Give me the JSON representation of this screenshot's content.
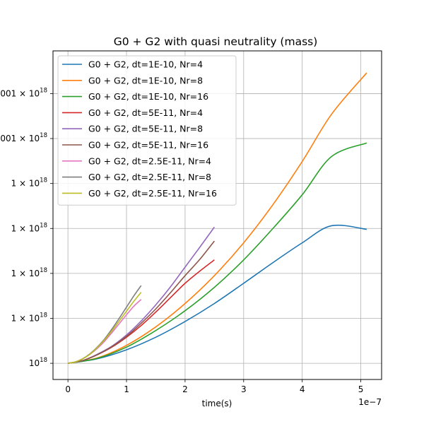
{
  "chart_data": {
    "type": "line",
    "title": "G0 + G2 with quasi neutrality (mass)",
    "xlabel": "time(s)",
    "ylabel": "",
    "x_offset_label": "1e−7",
    "xlim": [
      -0.255,
      5.355
    ],
    "ylim": [
      -0.36,
      6.95
    ],
    "x_ticks": [
      0,
      1,
      2,
      3,
      4,
      5
    ],
    "x_tick_labels": [
      "0",
      "1",
      "2",
      "3",
      "4",
      "5"
    ],
    "y_ticks": [
      0,
      1,
      2,
      3,
      4,
      5,
      6
    ],
    "y_tick_labels": [
      {
        "base": "10",
        "exp": "18"
      },
      {
        "base": "1 × 10",
        "exp": "18"
      },
      {
        "base": "1 × 10",
        "exp": "18"
      },
      {
        "base": "1 × 10",
        "exp": "18"
      },
      {
        "base": "1 × 10",
        "exp": "18"
      },
      {
        "base": "001 × 10",
        "exp": "18"
      },
      {
        "base": "001 × 10",
        "exp": "18"
      }
    ],
    "grid": true,
    "legend_position": "top-left",
    "series": [
      {
        "name": "G0 + G2, dt=1E-10, Nr=4",
        "color": "#1f77b4",
        "x": [
          0,
          0.5,
          1.0,
          1.5,
          2.0,
          2.5,
          3.0,
          3.5,
          4.0,
          4.5,
          5.1
        ],
        "y": [
          0,
          0.1,
          0.3,
          0.58,
          0.93,
          1.33,
          1.78,
          2.24,
          2.68,
          3.06,
          2.98
        ]
      },
      {
        "name": "G0 + G2, dt=1E-10, Nr=8",
        "color": "#ff7f0e",
        "x": [
          0,
          0.5,
          1.0,
          1.5,
          2.0,
          2.5,
          3.0,
          3.5,
          4.0,
          4.5,
          5.1
        ],
        "y": [
          0,
          0.12,
          0.4,
          0.81,
          1.33,
          1.95,
          2.68,
          3.53,
          4.49,
          5.54,
          6.46
        ]
      },
      {
        "name": "G0 + G2, dt=1E-10, Nr=16",
        "color": "#2ca02c",
        "x": [
          0,
          0.5,
          1.0,
          1.5,
          2.0,
          2.5,
          3.0,
          3.5,
          4.0,
          4.5,
          5.1
        ],
        "y": [
          0,
          0.11,
          0.36,
          0.73,
          1.17,
          1.69,
          2.3,
          3.0,
          3.75,
          4.6,
          4.9
        ]
      },
      {
        "name": "G0 + G2, dt=5E-11, Nr=4",
        "color": "#d62728",
        "x": [
          0,
          0.25,
          0.5,
          0.75,
          1.0,
          1.25,
          1.5,
          1.75,
          2.0,
          2.25,
          2.5
        ],
        "y": [
          0,
          0.06,
          0.19,
          0.36,
          0.58,
          0.84,
          1.14,
          1.46,
          1.78,
          2.05,
          2.3
        ]
      },
      {
        "name": "G0 + G2, dt=5E-11, Nr=8",
        "color": "#9467bd",
        "x": [
          0,
          0.25,
          0.5,
          0.75,
          1.0,
          1.25,
          1.5,
          1.75,
          2.0,
          2.25,
          2.5
        ],
        "y": [
          0,
          0.06,
          0.2,
          0.38,
          0.63,
          0.94,
          1.3,
          1.7,
          2.14,
          2.58,
          3.03
        ]
      },
      {
        "name": "G0 + G2, dt=5E-11, Nr=16",
        "color": "#8c564b",
        "x": [
          0,
          0.25,
          0.5,
          0.75,
          1.0,
          1.25,
          1.5,
          1.75,
          2.0,
          2.25,
          2.5
        ],
        "y": [
          0,
          0.06,
          0.19,
          0.37,
          0.6,
          0.89,
          1.21,
          1.57,
          1.95,
          2.31,
          2.72
        ]
      },
      {
        "name": "G0 + G2, dt=2.5E-11, Nr=4",
        "color": "#e377c2",
        "x": [
          0,
          0.125,
          0.25,
          0.375,
          0.5,
          0.625,
          0.75,
          0.875,
          1.0,
          1.125,
          1.25
        ],
        "y": [
          0,
          0.03,
          0.1,
          0.2,
          0.33,
          0.49,
          0.68,
          0.88,
          1.08,
          1.27,
          1.42
        ]
      },
      {
        "name": "G0 + G2, dt=2.5E-11, Nr=8",
        "color": "#7f7f7f",
        "x": [
          0,
          0.125,
          0.25,
          0.375,
          0.5,
          0.625,
          0.75,
          0.875,
          1.0,
          1.125,
          1.25
        ],
        "y": [
          0,
          0.03,
          0.1,
          0.21,
          0.36,
          0.54,
          0.76,
          1.0,
          1.25,
          1.5,
          1.73
        ]
      },
      {
        "name": "G0 + G2, dt=2.5E-11, Nr=16",
        "color": "#bcbd22",
        "x": [
          0,
          0.125,
          0.25,
          0.375,
          0.5,
          0.625,
          0.75,
          0.875,
          1.0,
          1.125,
          1.25
        ],
        "y": [
          0,
          0.03,
          0.1,
          0.2,
          0.35,
          0.52,
          0.72,
          0.94,
          1.16,
          1.38,
          1.58
        ]
      }
    ]
  }
}
